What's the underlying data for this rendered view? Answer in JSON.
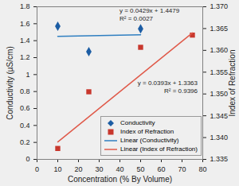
{
  "chart_data": {
    "type": "scatter",
    "x_label": "Concentration (% By Volume)",
    "y_label": "Conductivity (µS/cm)",
    "y2_label": "Index of Refraction",
    "xlim": [
      0,
      80
    ],
    "xticks": [
      0,
      10,
      20,
      30,
      40,
      50,
      60,
      70,
      80
    ],
    "ylim": [
      0,
      1.8
    ],
    "yticks": [
      0,
      0.2,
      0.4,
      0.6,
      0.8,
      1,
      1.2,
      1.4,
      1.6,
      1.8
    ],
    "y2lim": [
      1.335,
      1.37
    ],
    "y2ticks": [
      1.335,
      {
        "value": 1.34,
        "label": "1.340"
      },
      1.345,
      {
        "value": 1.35,
        "label": "1.350"
      },
      1.355,
      {
        "value": 1.36,
        "label": "1.360"
      },
      1.365,
      {
        "value": 1.37,
        "label": "1.370"
      }
    ],
    "grid": false,
    "legend": "center",
    "series": [
      {
        "name": "Conductivity",
        "type": "scatter",
        "marker": "diamond",
        "color": "#1c5da4",
        "x": [
          10,
          25,
          50
        ],
        "values": [
          1.57,
          1.27,
          1.54
        ]
      },
      {
        "name": "Index of Refraction",
        "type": "scatter",
        "marker": "square",
        "color": "#c8372d",
        "axis": "y2",
        "x": [
          10,
          25,
          50,
          75
        ],
        "values": [
          1.3375,
          1.3505,
          1.3607,
          1.3635
        ]
      },
      {
        "name": "Linear (Conductivity)",
        "type": "line",
        "line_style": "solid",
        "color": "#2f7fc1",
        "x": [
          10,
          50
        ],
        "values": [
          1.45,
          1.47
        ]
      },
      {
        "name": "Linear (Index of Refraction)",
        "type": "line",
        "line_style": "solid",
        "color": "#e05a4a",
        "axis": "y2",
        "x": [
          10,
          75
        ],
        "values": [
          1.339,
          1.364
        ]
      }
    ],
    "annotations": [
      "y = 0.0429x + 1.4479",
      "R² = 0.0027",
      "y = 0.0393x + 1.3363",
      "R² = 0.9396"
    ]
  }
}
